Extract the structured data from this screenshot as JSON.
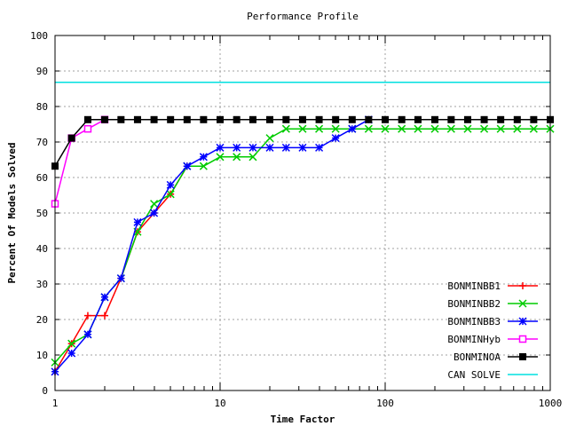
{
  "chart_data": {
    "type": "line",
    "title": "Performance Profile",
    "xlabel": "Time Factor",
    "ylabel": "Percent Of Models Solved",
    "xscale": "log",
    "xlim": [
      1,
      1000
    ],
    "ylim": [
      0,
      100
    ],
    "xticks": [
      "1",
      "10",
      "100",
      "1000"
    ],
    "yticks": [
      "0",
      "10",
      "20",
      "30",
      "40",
      "50",
      "60",
      "70",
      "80",
      "90",
      "100"
    ],
    "grid": true,
    "legend_position": "bottom-right",
    "series": [
      {
        "name": "BONMINBB1",
        "color": "#ff0000",
        "marker": "plus",
        "x": [
          1,
          1.26,
          1.58,
          2,
          2.51,
          3.16,
          3.98,
          5.01,
          6.31
        ],
        "y": [
          5.3,
          13.2,
          21.1,
          21.1,
          31.6,
          44.7,
          50,
          55.3,
          63.2
        ]
      },
      {
        "name": "BONMINBB2",
        "color": "#00cc00",
        "marker": "x",
        "x": [
          1,
          1.26,
          1.58,
          2,
          2.51,
          3.16,
          3.98,
          5.01,
          6.31,
          7.94,
          10,
          12.6,
          15.8,
          20,
          25.1,
          31.6,
          39.8,
          50.1,
          63.1,
          79.4,
          100,
          126,
          158,
          200,
          251,
          316,
          398,
          501,
          631,
          794,
          1000
        ],
        "y": [
          7.9,
          13.2,
          15.8,
          26.3,
          31.6,
          44.7,
          52.6,
          55.3,
          63.2,
          63.2,
          65.8,
          65.8,
          65.8,
          71.1,
          73.7,
          73.7,
          73.7,
          73.7,
          73.7,
          73.7,
          73.7,
          73.7,
          73.7,
          73.7,
          73.7,
          73.7,
          73.7,
          73.7,
          73.7,
          73.7,
          73.7
        ]
      },
      {
        "name": "BONMINBB3",
        "color": "#0000ff",
        "marker": "star",
        "x": [
          1,
          1.26,
          1.58,
          2,
          2.51,
          3.16,
          3.98,
          5.01,
          6.31,
          7.94,
          10,
          12.6,
          15.8,
          20,
          25.1,
          31.6,
          39.8,
          50.1,
          63.1,
          79.4
        ],
        "y": [
          5.3,
          10.5,
          15.8,
          26.3,
          31.6,
          47.4,
          50,
          57.9,
          63.2,
          65.8,
          68.4,
          68.4,
          68.4,
          68.4,
          68.4,
          68.4,
          68.4,
          71.1,
          73.7,
          76.3
        ]
      },
      {
        "name": "BONMINHyb",
        "color": "#ff00ff",
        "marker": "square-open",
        "x": [
          1,
          1.26,
          1.58,
          2
        ],
        "y": [
          52.6,
          71.1,
          73.7,
          76.3
        ]
      },
      {
        "name": "BONMINOA",
        "color": "#000000",
        "marker": "square-filled",
        "x": [
          1,
          1.26,
          1.58,
          2,
          2.51,
          3.16,
          3.98,
          5.01,
          6.31,
          7.94,
          10,
          12.6,
          15.8,
          20,
          25.1,
          31.6,
          39.8,
          50.1,
          63.1,
          79.4,
          100,
          126,
          158,
          200,
          251,
          316,
          398,
          501,
          631,
          794,
          1000
        ],
        "y": [
          63.2,
          71.1,
          76.3,
          76.3,
          76.3,
          76.3,
          76.3,
          76.3,
          76.3,
          76.3,
          76.3,
          76.3,
          76.3,
          76.3,
          76.3,
          76.3,
          76.3,
          76.3,
          76.3,
          76.3,
          76.3,
          76.3,
          76.3,
          76.3,
          76.3,
          76.3,
          76.3,
          76.3,
          76.3,
          76.3,
          76.3
        ]
      },
      {
        "name": "CAN SOLVE",
        "color": "#00e0e0",
        "marker": "none",
        "x": [
          1,
          1000
        ],
        "y": [
          86.8,
          86.8
        ]
      }
    ]
  }
}
